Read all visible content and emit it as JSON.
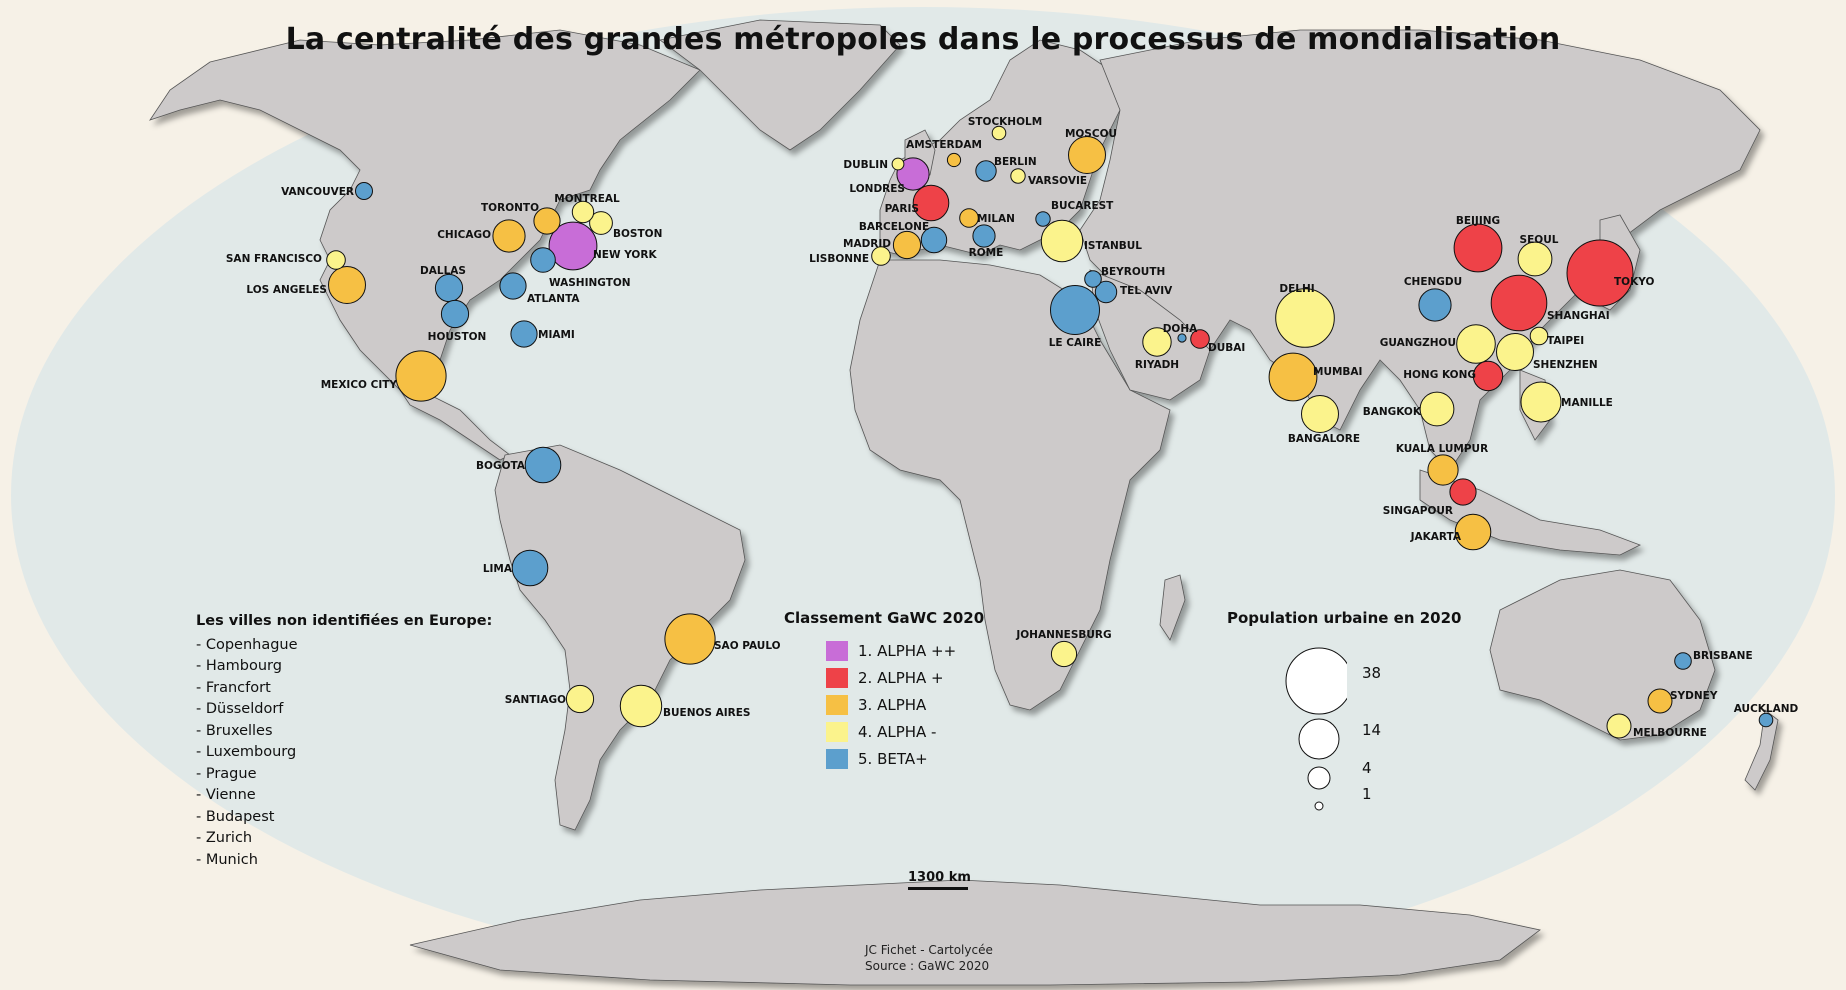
{
  "title": "La centralité des grandes métropoles dans le processus de mondialisation",
  "colors": {
    "ocean": "#e1e9e8",
    "land": "#cdcaca",
    "alpha_pp": "#c86dd7",
    "alpha_p": "#ee4248",
    "alpha": "#f6c044",
    "alpha_m": "#fbf38c",
    "beta_p": "#5c9fcd"
  },
  "notes": {
    "title": "Les villes non identifiées en Europe:",
    "items": [
      "- Copenhague",
      "- Hambourg",
      "- Francfort",
      "- Düsseldorf",
      "- Bruxelles",
      "- Luxembourg",
      "- Prague",
      "- Vienne",
      "- Budapest",
      "- Zurich",
      "- Munich"
    ]
  },
  "legend": {
    "title": "Classement GaWC 2020",
    "items": [
      {
        "label": "1. ALPHA ++",
        "color": "#c86dd7"
      },
      {
        "label": "2. ALPHA +",
        "color": "#ee4248"
      },
      {
        "label": "3. ALPHA",
        "color": "#f6c044"
      },
      {
        "label": "4. ALPHA -",
        "color": "#fbf38c"
      },
      {
        "label": "5. BETA+",
        "color": "#5c9fcd"
      }
    ]
  },
  "population_legend": {
    "title": "Population urbaine en 2020",
    "items": [
      {
        "value": 38,
        "label": "38"
      },
      {
        "value": 14,
        "label": "14"
      },
      {
        "value": 4,
        "label": "4"
      },
      {
        "value": 1,
        "label": "1"
      }
    ]
  },
  "scale": {
    "label": "1300 km"
  },
  "credits": {
    "author": "JC Fichet - Cartolycée",
    "source": "Source : GaWC 2020"
  },
  "cities": [
    {
      "name": "NEW YORK",
      "rank": 1,
      "pop": 20
    },
    {
      "name": "LONDRES",
      "rank": 1,
      "pop": 9
    },
    {
      "name": "TOKYO",
      "rank": 2,
      "pop": 38
    },
    {
      "name": "SHANGHAI",
      "rank": 2,
      "pop": 27
    },
    {
      "name": "BEIJING",
      "rank": 2,
      "pop": 20
    },
    {
      "name": "PARIS",
      "rank": 2,
      "pop": 11
    },
    {
      "name": "HONG KONG",
      "rank": 2,
      "pop": 7.5
    },
    {
      "name": "SINGAPOUR",
      "rank": 2,
      "pop": 6
    },
    {
      "name": "DUBAI",
      "rank": 2,
      "pop": 3
    },
    {
      "name": "LOS ANGELES",
      "rank": 3,
      "pop": 12
    },
    {
      "name": "CHICAGO",
      "rank": 3,
      "pop": 9
    },
    {
      "name": "TORONTO",
      "rank": 3,
      "pop": 6
    },
    {
      "name": "MEXICO CITY",
      "rank": 3,
      "pop": 22
    },
    {
      "name": "SAO PAULO",
      "rank": 3,
      "pop": 22
    },
    {
      "name": "MOSCOU",
      "rank": 3,
      "pop": 12
    },
    {
      "name": "MADRID",
      "rank": 3,
      "pop": 6.5
    },
    {
      "name": "MILAN",
      "rank": 3,
      "pop": 3
    },
    {
      "name": "AMSTERDAM",
      "rank": 3,
      "pop": 1.5
    },
    {
      "name": "MUMBAI",
      "rank": 3,
      "pop": 20
    },
    {
      "name": "KUALA LUMPUR",
      "rank": 3,
      "pop": 8
    },
    {
      "name": "JAKARTA",
      "rank": 3,
      "pop": 11
    },
    {
      "name": "SYDNEY",
      "rank": 3,
      "pop": 5
    },
    {
      "name": "SAN FRANCISCO",
      "rank": 4,
      "pop": 3
    },
    {
      "name": "MONTREAL",
      "rank": 4,
      "pop": 4
    },
    {
      "name": "BOSTON",
      "rank": 4,
      "pop": 4.5
    },
    {
      "name": "BUENOS AIRES",
      "rank": 4,
      "pop": 15
    },
    {
      "name": "SANTIAGO",
      "rank": 4,
      "pop": 6.5
    },
    {
      "name": "DUBLIN",
      "rank": 4,
      "pop": 1.2
    },
    {
      "name": "STOCKHOLM",
      "rank": 4,
      "pop": 1.6
    },
    {
      "name": "VARSOVIE",
      "rank": 4,
      "pop": 1.8
    },
    {
      "name": "LISBONNE",
      "rank": 4,
      "pop": 3
    },
    {
      "name": "ISTANBUL",
      "rank": 4,
      "pop": 15
    },
    {
      "name": "JOHANNESBURG",
      "rank": 4,
      "pop": 5.5
    },
    {
      "name": "RIYADH",
      "rank": 4,
      "pop": 7
    },
    {
      "name": "DELHI",
      "rank": 4,
      "pop": 30
    },
    {
      "name": "BANGALORE",
      "rank": 4,
      "pop": 12
    },
    {
      "name": "BANGKOK",
      "rank": 4,
      "pop": 10
    },
    {
      "name": "SEOUL",
      "rank": 4,
      "pop": 10
    },
    {
      "name": "TAIPEI",
      "rank": 4,
      "pop": 2.7
    },
    {
      "name": "GUANGZHOU",
      "rank": 4,
      "pop": 13
    },
    {
      "name": "SHENZHEN",
      "rank": 4,
      "pop": 12
    },
    {
      "name": "MANILLE",
      "rank": 4,
      "pop": 14
    },
    {
      "name": "MELBOURNE",
      "rank": 4,
      "pop": 5
    },
    {
      "name": "VANCOUVER",
      "rank": 5,
      "pop": 2.5
    },
    {
      "name": "DALLAS",
      "rank": 5,
      "pop": 6.5
    },
    {
      "name": "HOUSTON",
      "rank": 5,
      "pop": 6.5
    },
    {
      "name": "ATLANTA",
      "rank": 5,
      "pop": 6
    },
    {
      "name": "MIAMI",
      "rank": 5,
      "pop": 6
    },
    {
      "name": "WASHINGTON",
      "rank": 5,
      "pop": 5.3
    },
    {
      "name": "BOGOTA",
      "rank": 5,
      "pop": 11
    },
    {
      "name": "LIMA",
      "rank": 5,
      "pop": 11
    },
    {
      "name": "BARCELONE",
      "rank": 5,
      "pop": 5.6
    },
    {
      "name": "BERLIN",
      "rank": 5,
      "pop": 3.6
    },
    {
      "name": "ROME",
      "rank": 5,
      "pop": 4.3
    },
    {
      "name": "BUCAREST",
      "rank": 5,
      "pop": 1.8
    },
    {
      "name": "LE CAIRE",
      "rank": 5,
      "pop": 21
    },
    {
      "name": "BEYROUTH",
      "rank": 5,
      "pop": 2.4
    },
    {
      "name": "TEL AVIV",
      "rank": 5,
      "pop": 4
    },
    {
      "name": "DOHA",
      "rank": 5,
      "pop": 0.6
    },
    {
      "name": "CHENGDU",
      "rank": 5,
      "pop": 9
    },
    {
      "name": "BRISBANE",
      "rank": 5,
      "pop": 2.4
    },
    {
      "name": "AUCKLAND",
      "rank": 5,
      "pop": 1.6
    }
  ]
}
